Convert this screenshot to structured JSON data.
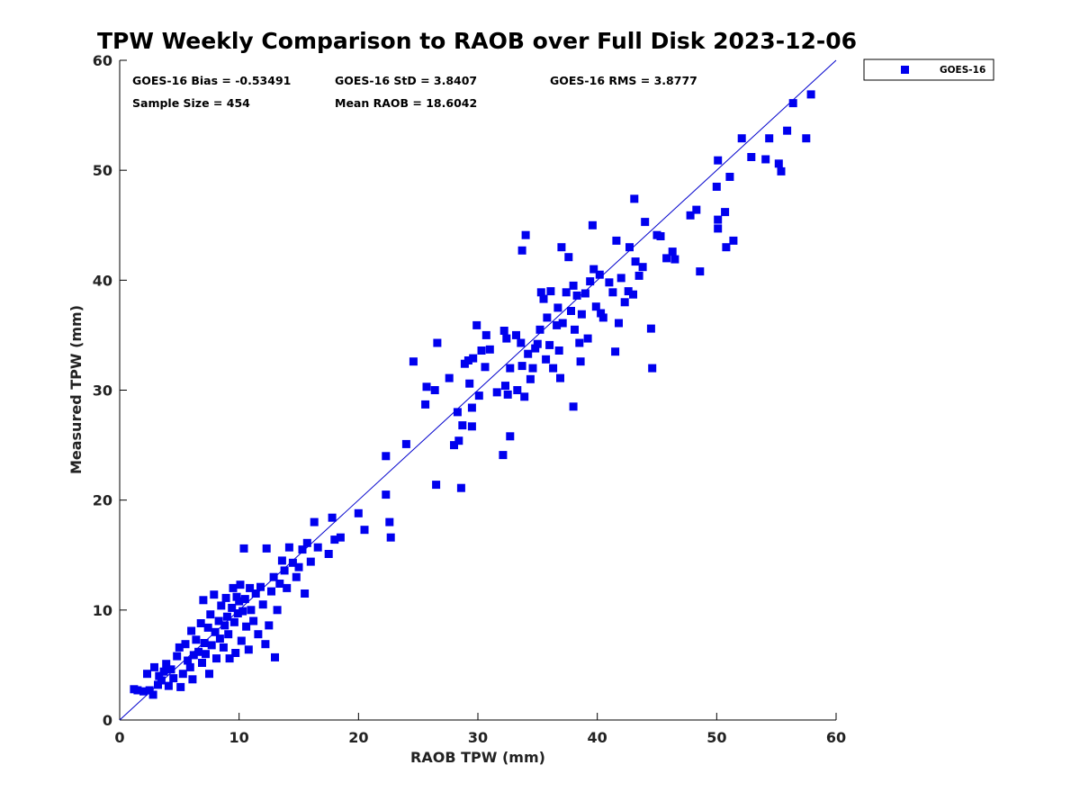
{
  "chart_data": {
    "type": "scatter",
    "title": "TPW Weekly Comparison to RAOB over Full Disk 2023-12-06",
    "xlabel": "RAOB TPW (mm)",
    "ylabel": "Measured TPW (mm)",
    "xlim": [
      0,
      60
    ],
    "ylim": [
      0,
      60
    ],
    "xticks": [
      "0",
      "10",
      "20",
      "30",
      "40",
      "50",
      "60"
    ],
    "yticks": [
      "0",
      "10",
      "20",
      "30",
      "40",
      "50",
      "60"
    ],
    "grid": false,
    "legend_position": "outside-top-right",
    "reference_line": {
      "name": "1:1 line",
      "from": [
        0,
        0
      ],
      "to": [
        60,
        60
      ],
      "color": "#0000cc"
    },
    "stats": {
      "bias": "GOES-16 Bias = -0.53491",
      "std": "GOES-16 StD = 3.8407",
      "rms": "GOES-16 RMS = 3.8777",
      "sample": "Sample Size = 454",
      "mean": "Mean RAOB = 18.6042"
    },
    "series": [
      {
        "name": "GOES-16",
        "color": "#0000ee",
        "marker": "square",
        "points": [
          [
            1.2,
            2.8
          ],
          [
            1.5,
            2.7
          ],
          [
            2.0,
            2.6
          ],
          [
            2.3,
            4.2
          ],
          [
            2.5,
            2.7
          ],
          [
            2.8,
            2.3
          ],
          [
            2.9,
            4.8
          ],
          [
            3.2,
            3.2
          ],
          [
            3.3,
            4.0
          ],
          [
            3.5,
            3.6
          ],
          [
            3.7,
            4.4
          ],
          [
            3.9,
            5.1
          ],
          [
            4.1,
            3.1
          ],
          [
            4.3,
            4.6
          ],
          [
            4.5,
            3.8
          ],
          [
            4.8,
            5.8
          ],
          [
            5.0,
            6.6
          ],
          [
            5.1,
            3.0
          ],
          [
            5.3,
            4.2
          ],
          [
            5.5,
            6.9
          ],
          [
            5.7,
            5.4
          ],
          [
            5.9,
            4.8
          ],
          [
            6.0,
            8.1
          ],
          [
            6.1,
            3.7
          ],
          [
            6.2,
            5.9
          ],
          [
            6.4,
            7.3
          ],
          [
            6.6,
            6.2
          ],
          [
            6.8,
            8.8
          ],
          [
            6.9,
            5.2
          ],
          [
            7.0,
            10.9
          ],
          [
            7.1,
            7.0
          ],
          [
            7.2,
            6.0
          ],
          [
            7.4,
            8.4
          ],
          [
            7.5,
            4.2
          ],
          [
            7.6,
            9.6
          ],
          [
            7.7,
            6.8
          ],
          [
            7.9,
            11.4
          ],
          [
            8.0,
            8.0
          ],
          [
            8.1,
            5.6
          ],
          [
            8.3,
            9.0
          ],
          [
            8.4,
            7.4
          ],
          [
            8.5,
            10.4
          ],
          [
            8.7,
            6.6
          ],
          [
            8.8,
            8.6
          ],
          [
            8.9,
            11.1
          ],
          [
            9.0,
            9.4
          ],
          [
            9.1,
            7.8
          ],
          [
            9.2,
            5.6
          ],
          [
            9.4,
            10.2
          ],
          [
            9.5,
            12.0
          ],
          [
            9.6,
            8.9
          ],
          [
            9.7,
            6.1
          ],
          [
            9.8,
            11.2
          ],
          [
            9.9,
            9.7
          ],
          [
            10.0,
            10.8
          ],
          [
            10.1,
            12.3
          ],
          [
            10.2,
            7.2
          ],
          [
            10.3,
            9.9
          ],
          [
            10.4,
            15.6
          ],
          [
            10.5,
            11.0
          ],
          [
            10.6,
            8.5
          ],
          [
            10.8,
            6.4
          ],
          [
            10.9,
            12.0
          ],
          [
            11.0,
            10.0
          ],
          [
            11.2,
            9.0
          ],
          [
            11.4,
            11.5
          ],
          [
            11.6,
            7.8
          ],
          [
            11.8,
            12.1
          ],
          [
            12.0,
            10.5
          ],
          [
            12.2,
            6.9
          ],
          [
            12.3,
            15.6
          ],
          [
            12.5,
            8.6
          ],
          [
            12.7,
            11.7
          ],
          [
            12.9,
            13.0
          ],
          [
            13.0,
            5.7
          ],
          [
            13.2,
            10.0
          ],
          [
            13.4,
            12.4
          ],
          [
            13.6,
            14.5
          ],
          [
            13.8,
            13.6
          ],
          [
            14.0,
            12.0
          ],
          [
            14.2,
            15.7
          ],
          [
            14.5,
            14.3
          ],
          [
            14.8,
            13.0
          ],
          [
            15.0,
            13.9
          ],
          [
            15.3,
            15.5
          ],
          [
            15.5,
            11.5
          ],
          [
            15.7,
            16.1
          ],
          [
            16.0,
            14.4
          ],
          [
            16.3,
            18.0
          ],
          [
            16.6,
            15.7
          ],
          [
            17.5,
            15.1
          ],
          [
            17.8,
            18.4
          ],
          [
            18.0,
            16.4
          ],
          [
            18.5,
            16.6
          ],
          [
            20.0,
            18.8
          ],
          [
            20.5,
            17.3
          ],
          [
            22.3,
            24.0
          ],
          [
            22.3,
            20.5
          ],
          [
            22.6,
            18.0
          ],
          [
            22.7,
            16.6
          ],
          [
            24.0,
            25.1
          ],
          [
            24.6,
            32.6
          ],
          [
            25.6,
            28.7
          ],
          [
            25.7,
            30.3
          ],
          [
            26.4,
            30.0
          ],
          [
            26.5,
            21.4
          ],
          [
            26.6,
            34.3
          ],
          [
            27.6,
            31.1
          ],
          [
            28.0,
            25.0
          ],
          [
            28.3,
            28.0
          ],
          [
            28.4,
            25.4
          ],
          [
            28.6,
            21.1
          ],
          [
            28.7,
            26.8
          ],
          [
            28.9,
            32.4
          ],
          [
            29.2,
            32.7
          ],
          [
            29.3,
            30.6
          ],
          [
            29.5,
            28.4
          ],
          [
            29.5,
            26.7
          ],
          [
            29.6,
            32.9
          ],
          [
            29.9,
            35.9
          ],
          [
            30.1,
            29.5
          ],
          [
            30.3,
            33.6
          ],
          [
            30.6,
            32.1
          ],
          [
            30.7,
            35.0
          ],
          [
            31.0,
            33.7
          ],
          [
            31.6,
            29.8
          ],
          [
            32.1,
            24.1
          ],
          [
            32.2,
            35.4
          ],
          [
            32.3,
            30.4
          ],
          [
            32.4,
            34.7
          ],
          [
            32.5,
            29.6
          ],
          [
            32.7,
            32.0
          ],
          [
            32.7,
            25.8
          ],
          [
            33.2,
            35.0
          ],
          [
            33.3,
            30.0
          ],
          [
            33.6,
            34.3
          ],
          [
            33.7,
            32.2
          ],
          [
            33.7,
            42.7
          ],
          [
            33.9,
            29.4
          ],
          [
            34.0,
            44.1
          ],
          [
            34.2,
            33.3
          ],
          [
            34.4,
            31.0
          ],
          [
            34.6,
            32.0
          ],
          [
            34.8,
            33.8
          ],
          [
            35.0,
            34.2
          ],
          [
            35.2,
            35.5
          ],
          [
            35.3,
            38.9
          ],
          [
            35.5,
            38.3
          ],
          [
            35.7,
            32.8
          ],
          [
            35.8,
            36.6
          ],
          [
            36.0,
            34.1
          ],
          [
            36.1,
            39.0
          ],
          [
            36.3,
            32.0
          ],
          [
            36.6,
            35.9
          ],
          [
            36.7,
            37.5
          ],
          [
            36.8,
            33.6
          ],
          [
            36.9,
            31.1
          ],
          [
            37.0,
            43.0
          ],
          [
            37.1,
            36.1
          ],
          [
            37.4,
            38.9
          ],
          [
            37.6,
            42.1
          ],
          [
            37.8,
            37.2
          ],
          [
            38.0,
            28.5
          ],
          [
            38.0,
            39.5
          ],
          [
            38.1,
            35.5
          ],
          [
            38.3,
            38.6
          ],
          [
            38.5,
            34.3
          ],
          [
            38.6,
            32.6
          ],
          [
            38.7,
            36.9
          ],
          [
            39.0,
            38.8
          ],
          [
            39.2,
            34.7
          ],
          [
            39.4,
            39.9
          ],
          [
            39.6,
            45.0
          ],
          [
            39.7,
            41.0
          ],
          [
            39.9,
            37.6
          ],
          [
            40.2,
            40.5
          ],
          [
            40.3,
            37.0
          ],
          [
            40.5,
            36.6
          ],
          [
            41.0,
            39.8
          ],
          [
            41.3,
            38.9
          ],
          [
            41.5,
            33.5
          ],
          [
            41.6,
            43.6
          ],
          [
            41.8,
            36.1
          ],
          [
            42.0,
            40.2
          ],
          [
            42.3,
            38.0
          ],
          [
            42.6,
            39.0
          ],
          [
            42.7,
            43.0
          ],
          [
            43.0,
            38.7
          ],
          [
            43.1,
            47.4
          ],
          [
            43.2,
            41.7
          ],
          [
            43.5,
            40.4
          ],
          [
            43.8,
            41.2
          ],
          [
            44.0,
            45.3
          ],
          [
            44.5,
            35.6
          ],
          [
            44.6,
            32.0
          ],
          [
            45.0,
            44.1
          ],
          [
            45.3,
            44.0
          ],
          [
            45.8,
            42.0
          ],
          [
            46.3,
            42.6
          ],
          [
            46.5,
            41.9
          ],
          [
            47.8,
            45.9
          ],
          [
            48.3,
            46.4
          ],
          [
            48.6,
            40.8
          ],
          [
            50.0,
            48.5
          ],
          [
            50.1,
            50.9
          ],
          [
            50.1,
            45.5
          ],
          [
            50.1,
            44.7
          ],
          [
            50.7,
            46.2
          ],
          [
            50.8,
            43.0
          ],
          [
            51.1,
            49.4
          ],
          [
            51.4,
            43.6
          ],
          [
            52.1,
            52.9
          ],
          [
            52.9,
            51.2
          ],
          [
            54.1,
            51.0
          ],
          [
            54.4,
            52.9
          ],
          [
            55.2,
            50.6
          ],
          [
            55.4,
            49.9
          ],
          [
            55.9,
            53.6
          ],
          [
            56.4,
            56.1
          ],
          [
            57.5,
            52.9
          ],
          [
            57.9,
            56.9
          ]
        ]
      }
    ]
  }
}
